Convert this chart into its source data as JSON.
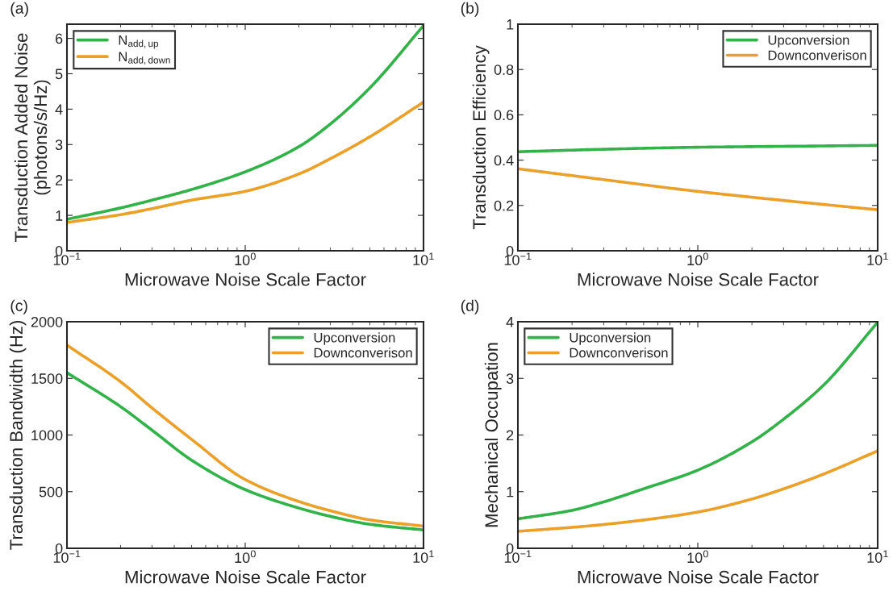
{
  "chart_data": [
    {
      "type": "line",
      "title": "(a)",
      "xlabel": "Microwave Noise Scale Factor",
      "ylabel": "Transduction Added Noise\n(photons/s/Hz)",
      "log": "x",
      "grid": false,
      "legend": "top left",
      "x": [
        0.1,
        0.2,
        0.3,
        0.5,
        1,
        2,
        3,
        5,
        10
      ],
      "xlim": [
        0.1,
        10
      ],
      "xticks": [
        {
          "value": 0.1,
          "label": "10$^{−1}$"
        },
        {
          "value": 1,
          "label": "10$^{0}$"
        },
        {
          "value": 10,
          "label": "10$^{1}$"
        }
      ],
      "ylim": [
        0,
        6.4
      ],
      "yticks": [
        0,
        1,
        2,
        3,
        4,
        5,
        6
      ],
      "series": [
        {
          "name": "N$_{add,up}$",
          "color": "#33b24a",
          "values": [
            0.89,
            1.21,
            1.43,
            1.73,
            2.23,
            2.94,
            3.58,
            4.6,
            6.36
          ]
        },
        {
          "name": "N$_{add,down}$",
          "color": "#eba02a",
          "values": [
            0.8,
            1.02,
            1.19,
            1.43,
            1.68,
            2.17,
            2.6,
            3.22,
            4.2
          ]
        }
      ]
    },
    {
      "type": "line",
      "title": "(b)",
      "xlabel": "Microwave Noise Scale Factor",
      "ylabel": "Transduction Efficiency",
      "log": "x",
      "grid": false,
      "legend": "top right",
      "x": [
        0.1,
        0.3,
        1,
        3,
        10
      ],
      "xlim": [
        0.1,
        10
      ],
      "xticks": [
        {
          "value": 0.1,
          "label": "10$^{−1}$"
        },
        {
          "value": 1,
          "label": "10$^{0}$"
        },
        {
          "value": 10,
          "label": "10$^{1}$"
        }
      ],
      "ylim": [
        0,
        1
      ],
      "yticks": [
        0,
        0.2,
        0.4,
        0.6,
        0.8,
        1
      ],
      "series": [
        {
          "name": "Upconversion",
          "color": "#33b24a",
          "values": [
            0.437,
            0.448,
            0.457,
            0.461,
            0.465
          ]
        },
        {
          "name": "Downconverison",
          "color": "#eba02a",
          "values": [
            0.362,
            0.314,
            0.262,
            0.222,
            0.181
          ]
        }
      ]
    },
    {
      "type": "line",
      "title": "(c)",
      "xlabel": "Microwave Noise Scale Factor",
      "ylabel": "Transduction Bandwidth (Hz)",
      "log": "x",
      "grid": false,
      "legend": "top right",
      "x": [
        0.1,
        0.2,
        0.3,
        0.5,
        1,
        2,
        3,
        5,
        10
      ],
      "xlim": [
        0.1,
        10
      ],
      "xticks": [
        {
          "value": 0.1,
          "label": "10$^{−1}$"
        },
        {
          "value": 1,
          "label": "10$^{0}$"
        },
        {
          "value": 10,
          "label": "10$^{1}$"
        }
      ],
      "ylim": [
        0,
        2000
      ],
      "yticks": [
        0,
        500,
        1000,
        1500,
        2000
      ],
      "series": [
        {
          "name": "Upconversion",
          "color": "#33b24a",
          "values": [
            1550,
            1250,
            1043,
            778,
            518,
            355,
            282,
            212,
            162
          ]
        },
        {
          "name": "Downconverison",
          "color": "#eba02a",
          "values": [
            1793,
            1470,
            1239,
            962,
            607,
            413,
            332,
            251,
            196
          ]
        }
      ]
    },
    {
      "type": "line",
      "title": "(d)",
      "xlabel": "Microwave Noise Scale Factor",
      "ylabel": "Mechanical Occupation",
      "log": "x",
      "grid": false,
      "legend": "top left",
      "x": [
        0.1,
        0.2,
        0.3,
        0.5,
        1,
        2,
        3,
        5,
        10
      ],
      "xlim": [
        0.1,
        10
      ],
      "xticks": [
        {
          "value": 0.1,
          "label": "10$^{−1}$"
        },
        {
          "value": 1,
          "label": "10$^{0}$"
        },
        {
          "value": 10,
          "label": "10$^{1}$"
        }
      ],
      "ylim": [
        0,
        4
      ],
      "yticks": [
        0,
        1,
        2,
        3,
        4
      ],
      "series": [
        {
          "name": "Upconversion",
          "color": "#33b24a",
          "values": [
            0.52,
            0.67,
            0.82,
            1.05,
            1.38,
            1.88,
            2.28,
            2.88,
            3.99
          ]
        },
        {
          "name": "Downconverison",
          "color": "#eba02a",
          "values": [
            0.3,
            0.37,
            0.42,
            0.5,
            0.64,
            0.87,
            1.05,
            1.31,
            1.72
          ]
        }
      ]
    }
  ]
}
